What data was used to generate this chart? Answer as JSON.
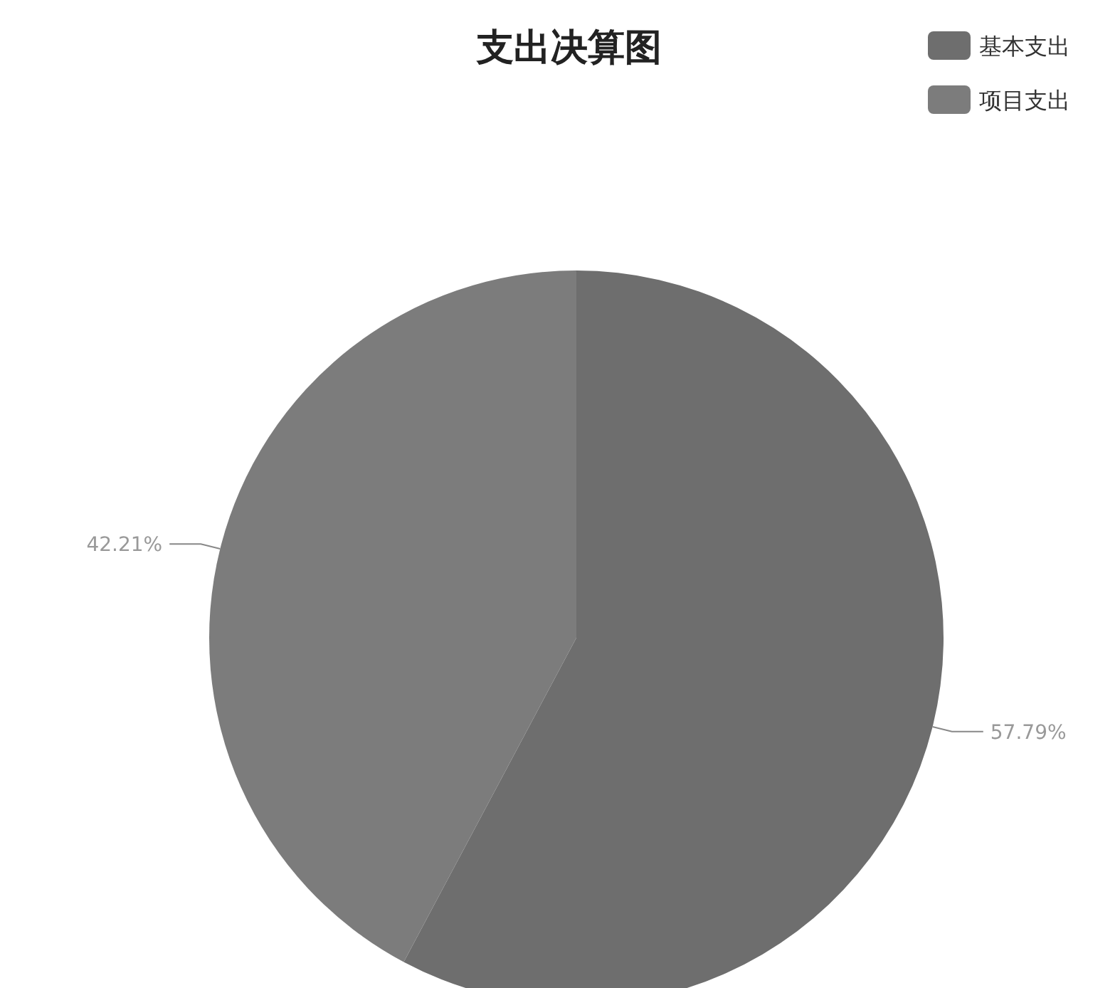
{
  "chart_data": {
    "type": "pie",
    "title": "支出决算图",
    "categories": [
      "基本支出",
      "项目支出"
    ],
    "values": [
      57.79,
      42.21
    ],
    "colors": [
      "#6e6e6e",
      "#7c7c7c"
    ],
    "value_labels": [
      "57.79%",
      "42.21%"
    ],
    "legend": "top right"
  }
}
